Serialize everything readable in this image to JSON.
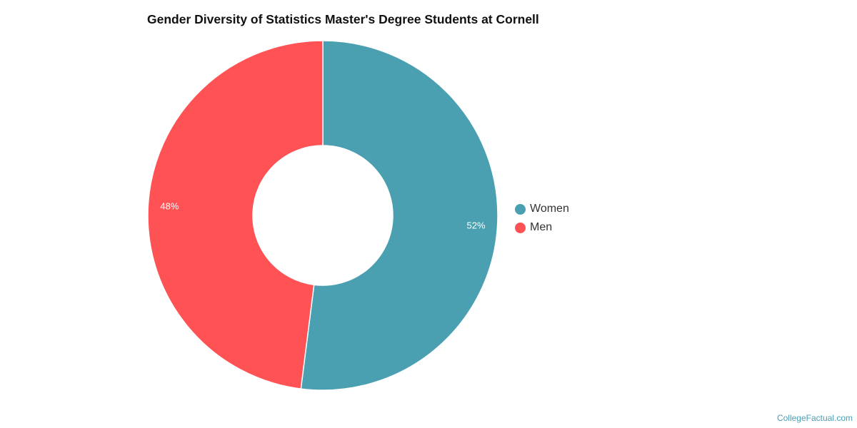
{
  "chart_data": {
    "type": "pie",
    "variant": "donut",
    "title": "Gender Diversity of Statistics Master's Degree Students at Cornell",
    "categories": [
      "Women",
      "Men"
    ],
    "values": [
      52,
      48
    ],
    "labels": [
      "52%",
      "48%"
    ],
    "colors": [
      "#4a9fb1",
      "#fe5254"
    ],
    "legend_position": "right",
    "start_angle": "top, clockwise"
  },
  "title": "Gender Diversity of Statistics Master's Degree Students at Cornell",
  "legend": {
    "items": [
      {
        "label": "Women",
        "color": "#4a9fb1"
      },
      {
        "label": "Men",
        "color": "#fe5254"
      }
    ]
  },
  "credit": "CollegeFactual.com"
}
